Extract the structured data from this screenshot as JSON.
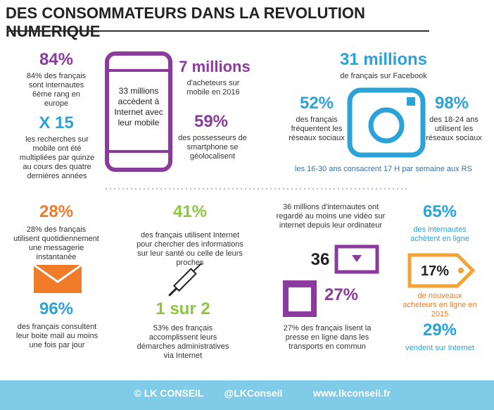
{
  "header": {
    "title": "DES CONSOMMATEURS DANS LA REVOLUTION NUMERIQUE"
  },
  "top": {
    "stat_84": {
      "value": "84%",
      "text": "84% des français sont internautes 6ème rang en europe"
    },
    "stat_x15": {
      "value": "X 15",
      "text": "les recherches sur mobile ont été multipliées par quinze au cours des quatre dernières années"
    },
    "phone": {
      "text": "33 millions accèdent à Internet avec leur mobile"
    },
    "stat_7m": {
      "value": "7 millions",
      "text": "d'acheteurs sur mobile en 2016"
    },
    "stat_59": {
      "value": "59%",
      "text": "des possesseurs de smartphone se géolocalisent"
    },
    "stat_31m": {
      "value": "31 millions",
      "text": "de français sur Facebook"
    },
    "stat_52": {
      "value": "52%",
      "text": "des français fréquentent les réseaux sociaux"
    },
    "stat_98": {
      "value": "98%",
      "text": "des 18-24 ans utilisent les réseaux sociaux"
    },
    "note": "les 16-30 ans consacrent 17 H par semaine aux RS"
  },
  "bottom": {
    "stat_28": {
      "value": "28%",
      "text": "28% des français utilisent quotidiennement une messagerie instantanée"
    },
    "stat_96": {
      "value": "96%",
      "text": "des français consultent leur boite mail au moins une fois par jour"
    },
    "stat_41": {
      "value": "41%",
      "text": "des français utilisent Internet pour chercher des informations sur leur santé ou celle de leurs proches"
    },
    "stat_1sur2": {
      "value": "1 sur 2",
      "text": "53% des français accomplissent leurs démarches administratives via Internet"
    },
    "video": {
      "text": "36 millions d'internautes ont regardé au moins une vidéo sur internet depuis leur ordinateur",
      "value": "36"
    },
    "stat_27": {
      "value": "27%",
      "text": "27% des français lisent la presse en ligne dans les transports en commun"
    },
    "stat_65": {
      "value": "65%",
      "text": "des internautes achètent en ligne"
    },
    "stat_17": {
      "value": "17%",
      "text": "de nouveaux acheteurs en ligne en 2015"
    },
    "stat_29": {
      "value": "29%",
      "text": "vendent sur Internet"
    }
  },
  "footer": {
    "copyright": "© LK CONSEIL",
    "twitter": "@LKConseil",
    "website": "www.lkconseil.fr"
  }
}
